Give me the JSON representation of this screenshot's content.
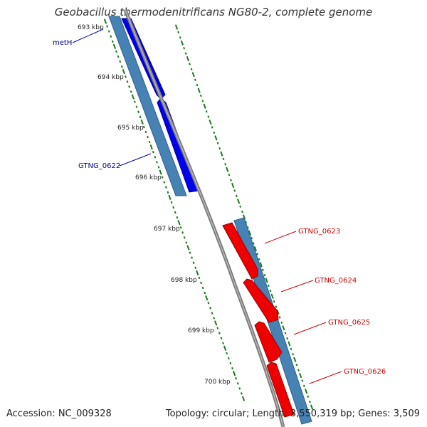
{
  "title": "Geobacillus thermodenitrificans NG80-2, complete genome",
  "footer": {
    "accession": "Accession: NC_009328",
    "stats": "Topology: circular; Length: 3,550,319 bp; Genes: 3,509"
  },
  "colors": {
    "forward_gene": "#0000ee",
    "reverse_gene": "#ee0000",
    "cds_band": "#4682b4",
    "backbone": "#888888",
    "tick": "#1a7a1a",
    "forward_label": "#00008b",
    "reverse_label": "#cc0000"
  },
  "ticks": [
    {
      "label": "693 kbp"
    },
    {
      "label": "694 kbp"
    },
    {
      "label": "695 kbp"
    },
    {
      "label": "696 kbp"
    },
    {
      "label": "697 kbp"
    },
    {
      "label": "698 kbp"
    },
    {
      "label": "699 kbp"
    },
    {
      "label": "700 kbp"
    }
  ],
  "genes": [
    {
      "name": "metH",
      "strand": "forward"
    },
    {
      "name": "GTNG_0622",
      "strand": "forward"
    },
    {
      "name": "GTNG_0623",
      "strand": "reverse"
    },
    {
      "name": "GTNG_0624",
      "strand": "reverse"
    },
    {
      "name": "GTNG_0625",
      "strand": "reverse"
    },
    {
      "name": "GTNG_0626",
      "strand": "reverse"
    }
  ]
}
